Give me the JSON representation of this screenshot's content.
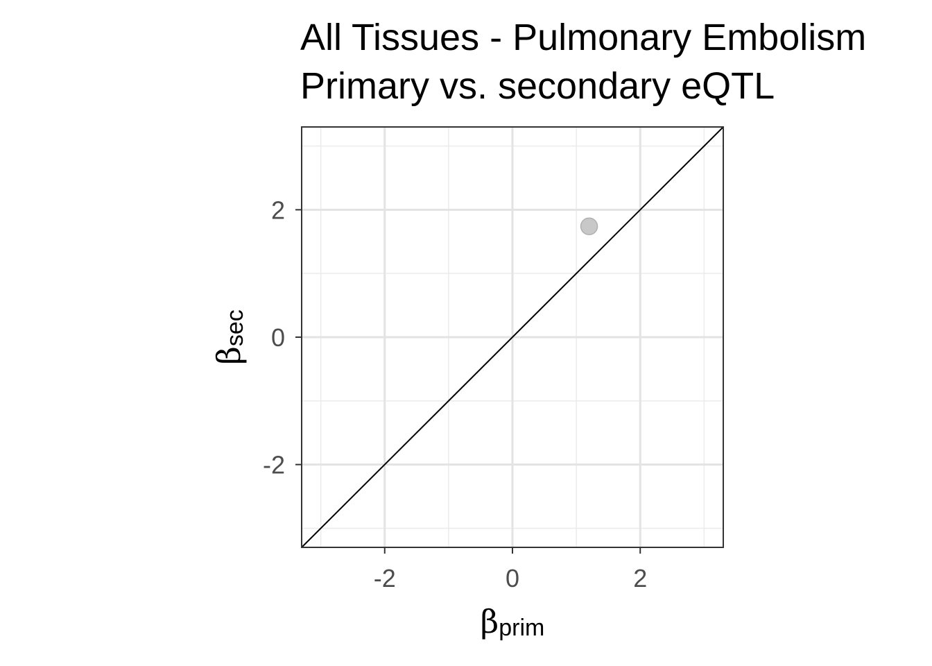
{
  "chart_data": {
    "type": "scatter",
    "title": [
      "All Tissues - Pulmonary Embolism",
      "Primary vs. secondary eQTL"
    ],
    "xlabel": {
      "symbol": "β",
      "subscript": "prim"
    },
    "ylabel": {
      "symbol": "β",
      "subscript": "sec"
    },
    "xlim": [
      -3.3,
      3.3
    ],
    "ylim": [
      -3.3,
      3.3
    ],
    "x_ticks": [
      -2,
      0,
      2
    ],
    "y_ticks": [
      -2,
      0,
      2
    ],
    "x_tick_labels": [
      "-2",
      "0",
      "2"
    ],
    "y_tick_labels": [
      "-2",
      "0",
      "2"
    ],
    "grid": true,
    "reference_line": {
      "slope": 1,
      "intercept": 0
    },
    "points": [
      {
        "x": 1.2,
        "y": 1.74
      }
    ],
    "point_color": "#c8c8c8",
    "point_stroke": "#b0b0b0"
  }
}
